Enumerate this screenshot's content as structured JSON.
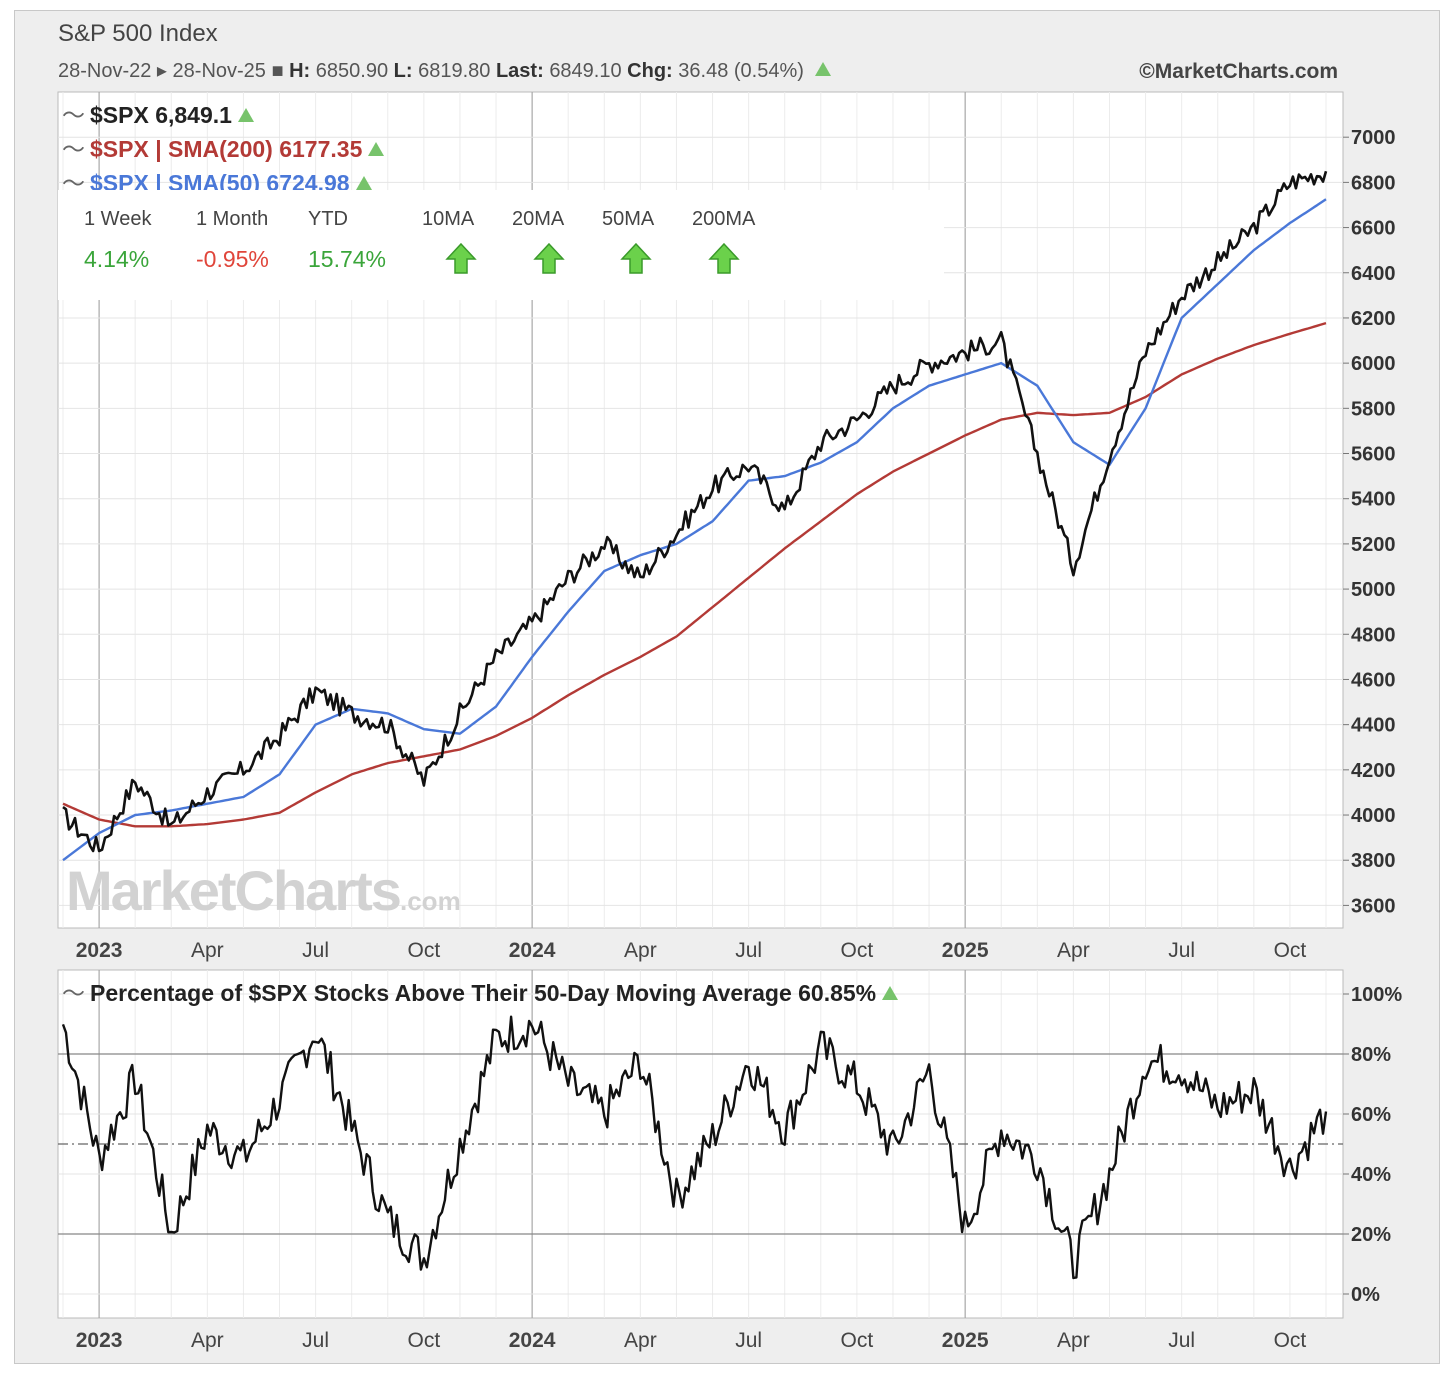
{
  "header": {
    "title": "S&P 500 Index",
    "date_range": "28-Nov-22 ▸ 28-Nov-25 ■",
    "high_label": "H:",
    "high_value": "6850.90",
    "low_label": "L:",
    "low_value": "6819.80",
    "last_label": "Last:",
    "last_value": "6849.10",
    "chg_label": "Chg:",
    "chg_value": "36.48 (0.54%)",
    "credit": "©MarketCharts.com"
  },
  "legend": {
    "price": "$SPX 6,849.1",
    "sma200": "$SPX | SMA(200) 6177.35",
    "sma50": "$SPX | SMA(50) 6724.98"
  },
  "performance": {
    "headers": [
      "1 Week",
      "1 Month",
      "YTD",
      "10MA",
      "20MA",
      "50MA",
      "200MA"
    ],
    "values": [
      "4.14%",
      "-0.95%",
      "15.74%"
    ],
    "value_colors": [
      "#3aa53a",
      "#e0453a",
      "#3aa53a"
    ],
    "ma_trend": [
      "up",
      "up",
      "up",
      "up"
    ]
  },
  "watermark": "MarketCharts",
  "watermark_suffix": ".com",
  "lower_panel": {
    "title": "Percentage of $SPX Stocks Above Their 50-Day Moving Average 60.85%"
  },
  "colors": {
    "price": "#111111",
    "sma50": "#4a78d8",
    "sma200": "#b33a36",
    "up_arrow": "#6bd14b",
    "positive": "#3aa53a",
    "negative": "#e0453a"
  },
  "chart_data": [
    {
      "type": "line",
      "title": "S&P 500 Index",
      "ylim": [
        3500,
        7200
      ],
      "yticks": [
        3600,
        3800,
        4000,
        4200,
        4400,
        4600,
        4800,
        5000,
        5200,
        5400,
        5600,
        5800,
        6000,
        6200,
        6400,
        6600,
        6800,
        7000
      ],
      "xtick_labels": [
        {
          "label": "2023",
          "bold": true
        },
        {
          "label": "Apr"
        },
        {
          "label": "Jul"
        },
        {
          "label": "Oct"
        },
        {
          "label": "2024",
          "bold": true
        },
        {
          "label": "Apr"
        },
        {
          "label": "Jul"
        },
        {
          "label": "Oct"
        },
        {
          "label": "2025",
          "bold": true
        },
        {
          "label": "Apr"
        },
        {
          "label": "Jul"
        },
        {
          "label": "Oct"
        }
      ],
      "x": [
        "2022-12",
        "2023-01",
        "2023-02",
        "2023-03",
        "2023-04",
        "2023-05",
        "2023-06",
        "2023-07",
        "2023-08",
        "2023-09",
        "2023-10",
        "2023-11",
        "2023-12",
        "2024-01",
        "2024-02",
        "2024-03",
        "2024-04",
        "2024-05",
        "2024-06",
        "2024-07",
        "2024-08",
        "2024-09",
        "2024-10",
        "2024-11",
        "2024-12",
        "2025-01",
        "2025-02",
        "2025-03",
        "2025-04",
        "2025-05",
        "2025-06",
        "2025-07",
        "2025-08",
        "2025-09",
        "2025-10",
        "2025-11"
      ],
      "series": [
        {
          "name": "$SPX",
          "values": [
            4000,
            3850,
            4150,
            3950,
            4100,
            4200,
            4350,
            4550,
            4450,
            4400,
            4150,
            4450,
            4700,
            4850,
            5050,
            5200,
            5050,
            5250,
            5450,
            5550,
            5350,
            5650,
            5750,
            5900,
            6000,
            6050,
            6100,
            5600,
            5100,
            5600,
            6050,
            6300,
            6450,
            6600,
            6800,
            6849
          ]
        },
        {
          "name": "$SPX | SMA(50)",
          "values": [
            3800,
            3920,
            4000,
            4020,
            4050,
            4080,
            4180,
            4400,
            4470,
            4450,
            4380,
            4360,
            4480,
            4700,
            4900,
            5080,
            5150,
            5200,
            5300,
            5480,
            5500,
            5560,
            5650,
            5800,
            5900,
            5950,
            6000,
            5900,
            5650,
            5550,
            5800,
            6200,
            6350,
            6500,
            6620,
            6725
          ]
        },
        {
          "name": "$SPX | SMA(200)",
          "values": [
            4050,
            3980,
            3950,
            3950,
            3960,
            3980,
            4010,
            4100,
            4180,
            4230,
            4260,
            4290,
            4350,
            4430,
            4530,
            4620,
            4700,
            4790,
            4920,
            5050,
            5180,
            5300,
            5420,
            5520,
            5600,
            5680,
            5750,
            5780,
            5770,
            5780,
            5850,
            5950,
            6020,
            6080,
            6130,
            6177
          ]
        }
      ]
    },
    {
      "type": "line",
      "title": "Percentage of $SPX Stocks Above Their 50-Day Moving Average",
      "ylim": [
        -8,
        108
      ],
      "yticks": [
        0,
        20,
        40,
        60,
        80,
        100
      ],
      "ytick_suffix": "%",
      "reference_lines": [
        20,
        50,
        80
      ],
      "x": [
        "2022-12",
        "2023-01",
        "2023-02",
        "2023-03",
        "2023-04",
        "2023-05",
        "2023-06",
        "2023-07",
        "2023-08",
        "2023-09",
        "2023-10",
        "2023-11",
        "2023-12",
        "2024-01",
        "2024-02",
        "2024-03",
        "2024-04",
        "2024-05",
        "2024-06",
        "2024-07",
        "2024-08",
        "2024-09",
        "2024-10",
        "2024-11",
        "2024-12",
        "2025-01",
        "2025-02",
        "2025-03",
        "2025-04",
        "2025-05",
        "2025-06",
        "2025-07",
        "2025-08",
        "2025-09",
        "2025-10",
        "2025-11"
      ],
      "series": [
        {
          "name": "Percentage of $SPX Stocks Above Their 50-Day Moving Average",
          "values": [
            90,
            45,
            72,
            20,
            55,
            45,
            65,
            88,
            55,
            25,
            12,
            50,
            85,
            90,
            70,
            60,
            78,
            32,
            52,
            78,
            55,
            82,
            70,
            48,
            75,
            22,
            55,
            45,
            10,
            40,
            78,
            75,
            62,
            68,
            42,
            60.85
          ]
        }
      ]
    }
  ]
}
